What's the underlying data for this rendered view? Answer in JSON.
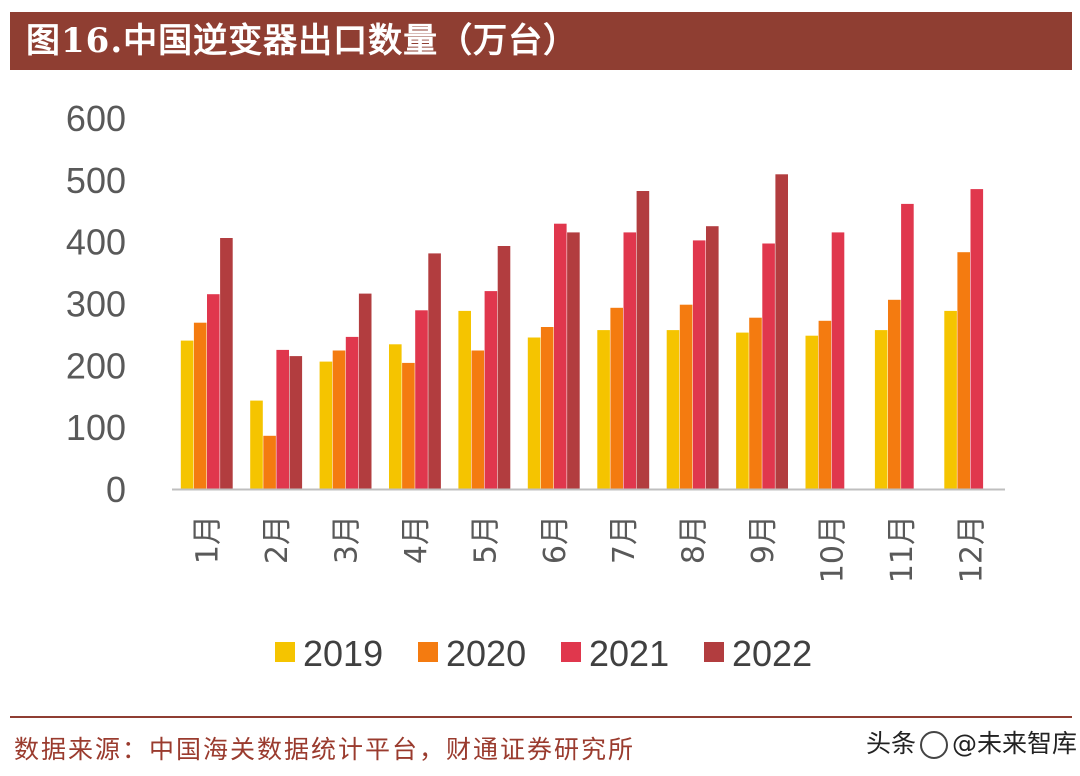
{
  "title": "图16.中国逆变器出口数量（万台）",
  "source": "数据来源：中国海关数据统计平台，财通证券研究所",
  "watermark": {
    "prefix": "头条",
    "account": "@未来智库"
  },
  "colors": {
    "title_bar": "#8f3e32",
    "axis": "#bfbfbf",
    "tick_text": "#595959"
  },
  "chart_data": {
    "type": "bar",
    "title": "图16.中国逆变器出口数量（万台）",
    "xlabel": "",
    "ylabel": "",
    "ylim": [
      0,
      600
    ],
    "yticks": [
      0,
      100,
      200,
      300,
      400,
      500,
      600
    ],
    "grid": false,
    "legend": "bottom",
    "categories": [
      "1月",
      "2月",
      "3月",
      "4月",
      "5月",
      "6月",
      "7月",
      "8月",
      "9月",
      "10月",
      "11月",
      "12月"
    ],
    "series": [
      {
        "name": "2019",
        "color": "#f5c400",
        "values": [
          240,
          143,
          206,
          234,
          288,
          245,
          257,
          257,
          253,
          248,
          257,
          288
        ]
      },
      {
        "name": "2020",
        "color": "#f47b10",
        "values": [
          269,
          86,
          224,
          204,
          224,
          262,
          293,
          298,
          277,
          272,
          306,
          383
        ]
      },
      {
        "name": "2021",
        "color": "#e0374d",
        "values": [
          315,
          225,
          246,
          289,
          320,
          429,
          415,
          402,
          397,
          415,
          461,
          485
        ]
      },
      {
        "name": "2022",
        "color": "#b23d3f",
        "values": [
          406,
          215,
          316,
          381,
          393,
          415,
          482,
          425,
          509,
          null,
          null,
          null
        ]
      }
    ]
  }
}
